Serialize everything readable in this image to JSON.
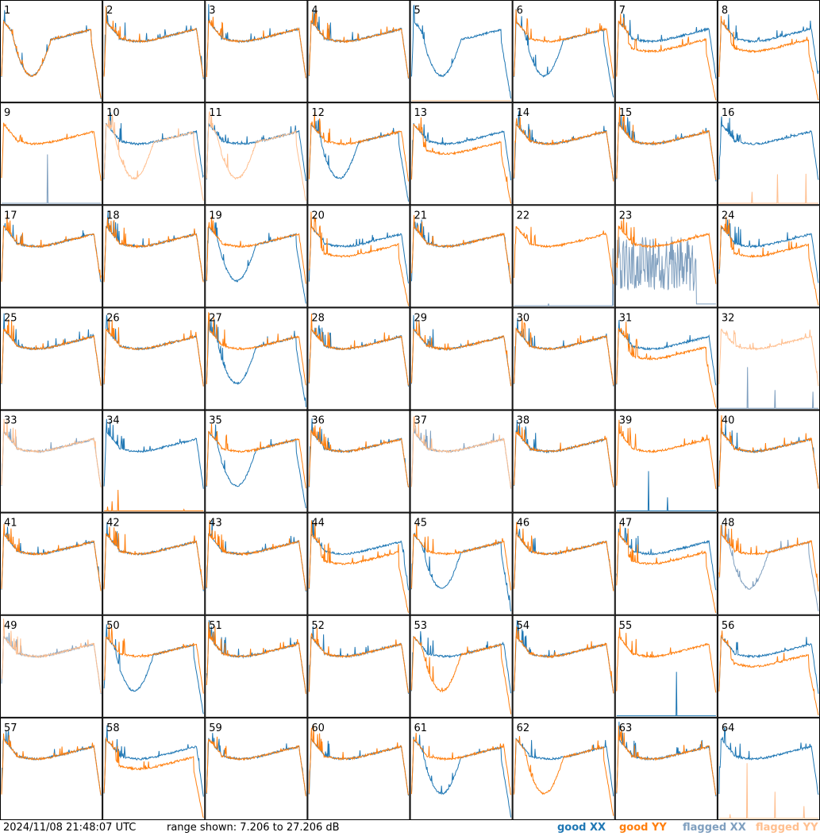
{
  "footer": {
    "timestamp": "2024/11/08 21:48:07 UTC",
    "range_text": "range shown: 7.206 to 27.206 dB"
  },
  "legend": [
    {
      "label": "good XX",
      "color": "#1f77b4"
    },
    {
      "label": "good YY",
      "color": "#ff7f0e"
    },
    {
      "label": "flagged XX",
      "color": "#7f9fbf"
    },
    {
      "label": "flagged YY",
      "color": "#ffbf8f"
    }
  ],
  "chart_data": {
    "type": "line",
    "grid": "8x8 small-multiples",
    "y_range_db": [
      7.206,
      27.206
    ],
    "panels": [
      {
        "id": "1",
        "xx": "dip",
        "yy": "dip",
        "xx_flag": false,
        "yy_flag": false
      },
      {
        "id": "2",
        "xx": "good",
        "yy": "good",
        "xx_flag": false,
        "yy_flag": false
      },
      {
        "id": "3",
        "xx": "good",
        "yy": "good",
        "xx_flag": false,
        "yy_flag": false
      },
      {
        "id": "4",
        "xx": "good",
        "yy": "good",
        "xx_flag": false,
        "yy_flag": false
      },
      {
        "id": "5",
        "xx": "dip",
        "yy": "dead",
        "xx_flag": false,
        "yy_flag": true
      },
      {
        "id": "6",
        "xx": "dip",
        "yy": "good",
        "xx_flag": false,
        "yy_flag": false
      },
      {
        "id": "7",
        "xx": "good",
        "yy": "low",
        "xx_flag": false,
        "yy_flag": false
      },
      {
        "id": "8",
        "xx": "good",
        "yy": "low",
        "xx_flag": false,
        "yy_flag": false
      },
      {
        "id": "9",
        "xx": "dead",
        "yy": "good",
        "xx_flag": true,
        "yy_flag": false
      },
      {
        "id": "10",
        "xx": "good",
        "yy": "dip",
        "xx_flag": false,
        "yy_flag": true
      },
      {
        "id": "11",
        "xx": "good",
        "yy": "dip",
        "xx_flag": false,
        "yy_flag": true
      },
      {
        "id": "12",
        "xx": "dip",
        "yy": "good",
        "xx_flag": false,
        "yy_flag": false
      },
      {
        "id": "13",
        "xx": "good",
        "yy": "low",
        "xx_flag": false,
        "yy_flag": false
      },
      {
        "id": "14",
        "xx": "good",
        "yy": "good",
        "xx_flag": false,
        "yy_flag": false
      },
      {
        "id": "15",
        "xx": "good",
        "yy": "good",
        "xx_flag": false,
        "yy_flag": false
      },
      {
        "id": "16",
        "xx": "good",
        "yy": "dead",
        "xx_flag": false,
        "yy_flag": true
      },
      {
        "id": "17",
        "xx": "good",
        "yy": "good",
        "xx_flag": false,
        "yy_flag": false
      },
      {
        "id": "18",
        "xx": "good",
        "yy": "good",
        "xx_flag": false,
        "yy_flag": false
      },
      {
        "id": "19",
        "xx": "dip",
        "yy": "good",
        "xx_flag": false,
        "yy_flag": false
      },
      {
        "id": "20",
        "xx": "good",
        "yy": "low",
        "xx_flag": false,
        "yy_flag": false
      },
      {
        "id": "21",
        "xx": "good",
        "yy": "good",
        "xx_flag": false,
        "yy_flag": false
      },
      {
        "id": "22",
        "xx": "dead",
        "yy": "good",
        "xx_flag": true,
        "yy_flag": false
      },
      {
        "id": "23",
        "xx": "noisy",
        "yy": "good",
        "xx_flag": true,
        "yy_flag": false
      },
      {
        "id": "24",
        "xx": "good",
        "yy": "low",
        "xx_flag": false,
        "yy_flag": false
      },
      {
        "id": "25",
        "xx": "good",
        "yy": "good",
        "xx_flag": false,
        "yy_flag": false
      },
      {
        "id": "26",
        "xx": "good",
        "yy": "good",
        "xx_flag": false,
        "yy_flag": false
      },
      {
        "id": "27",
        "xx": "dip",
        "yy": "good",
        "xx_flag": false,
        "yy_flag": false
      },
      {
        "id": "28",
        "xx": "good",
        "yy": "good",
        "xx_flag": false,
        "yy_flag": false
      },
      {
        "id": "29",
        "xx": "good",
        "yy": "good",
        "xx_flag": false,
        "yy_flag": false
      },
      {
        "id": "30",
        "xx": "good",
        "yy": "good",
        "xx_flag": false,
        "yy_flag": false
      },
      {
        "id": "31",
        "xx": "good",
        "yy": "low",
        "xx_flag": false,
        "yy_flag": false
      },
      {
        "id": "32",
        "xx": "dead",
        "yy": "good",
        "xx_flag": true,
        "yy_flag": true
      },
      {
        "id": "33",
        "xx": "good",
        "yy": "good",
        "xx_flag": true,
        "yy_flag": true
      },
      {
        "id": "34",
        "xx": "good",
        "yy": "dead",
        "xx_flag": false,
        "yy_flag": false
      },
      {
        "id": "35",
        "xx": "dip",
        "yy": "good",
        "xx_flag": false,
        "yy_flag": false
      },
      {
        "id": "36",
        "xx": "good",
        "yy": "good",
        "xx_flag": false,
        "yy_flag": false
      },
      {
        "id": "37",
        "xx": "good",
        "yy": "good",
        "xx_flag": true,
        "yy_flag": true
      },
      {
        "id": "38",
        "xx": "good",
        "yy": "good",
        "xx_flag": false,
        "yy_flag": false
      },
      {
        "id": "39",
        "xx": "dead",
        "yy": "good",
        "xx_flag": false,
        "yy_flag": false
      },
      {
        "id": "40",
        "xx": "good",
        "yy": "good",
        "xx_flag": false,
        "yy_flag": false
      },
      {
        "id": "41",
        "xx": "good",
        "yy": "good",
        "xx_flag": false,
        "yy_flag": false
      },
      {
        "id": "42",
        "xx": "good",
        "yy": "good",
        "xx_flag": false,
        "yy_flag": false
      },
      {
        "id": "43",
        "xx": "good",
        "yy": "good",
        "xx_flag": false,
        "yy_flag": false
      },
      {
        "id": "44",
        "xx": "good",
        "yy": "low",
        "xx_flag": false,
        "yy_flag": false
      },
      {
        "id": "45",
        "xx": "dip",
        "yy": "good",
        "xx_flag": false,
        "yy_flag": false
      },
      {
        "id": "46",
        "xx": "good",
        "yy": "good",
        "xx_flag": false,
        "yy_flag": false
      },
      {
        "id": "47",
        "xx": "good",
        "yy": "low",
        "xx_flag": false,
        "yy_flag": false
      },
      {
        "id": "48",
        "xx": "dip",
        "yy": "good",
        "xx_flag": true,
        "yy_flag": false
      },
      {
        "id": "49",
        "xx": "good",
        "yy": "good",
        "xx_flag": true,
        "yy_flag": true
      },
      {
        "id": "50",
        "xx": "dip",
        "yy": "good",
        "xx_flag": false,
        "yy_flag": false
      },
      {
        "id": "51",
        "xx": "good",
        "yy": "good",
        "xx_flag": false,
        "yy_flag": false
      },
      {
        "id": "52",
        "xx": "good",
        "yy": "good",
        "xx_flag": false,
        "yy_flag": false
      },
      {
        "id": "53",
        "xx": "good",
        "yy": "dip",
        "xx_flag": false,
        "yy_flag": false
      },
      {
        "id": "54",
        "xx": "good",
        "yy": "good",
        "xx_flag": false,
        "yy_flag": false
      },
      {
        "id": "55",
        "xx": "dead",
        "yy": "good",
        "xx_flag": false,
        "yy_flag": false
      },
      {
        "id": "56",
        "xx": "good",
        "yy": "low",
        "xx_flag": false,
        "yy_flag": false
      },
      {
        "id": "57",
        "xx": "good",
        "yy": "good",
        "xx_flag": false,
        "yy_flag": false
      },
      {
        "id": "58",
        "xx": "good",
        "yy": "low",
        "xx_flag": false,
        "yy_flag": false
      },
      {
        "id": "59",
        "xx": "good",
        "yy": "good",
        "xx_flag": false,
        "yy_flag": false
      },
      {
        "id": "60",
        "xx": "good",
        "yy": "good",
        "xx_flag": false,
        "yy_flag": false
      },
      {
        "id": "61",
        "xx": "dip",
        "yy": "good",
        "xx_flag": false,
        "yy_flag": false
      },
      {
        "id": "62",
        "xx": "good",
        "yy": "dip",
        "xx_flag": false,
        "yy_flag": false
      },
      {
        "id": "63",
        "xx": "good",
        "yy": "good",
        "xx_flag": false,
        "yy_flag": false
      },
      {
        "id": "64",
        "xx": "good",
        "yy": "dead",
        "xx_flag": false,
        "yy_flag": true
      }
    ]
  }
}
